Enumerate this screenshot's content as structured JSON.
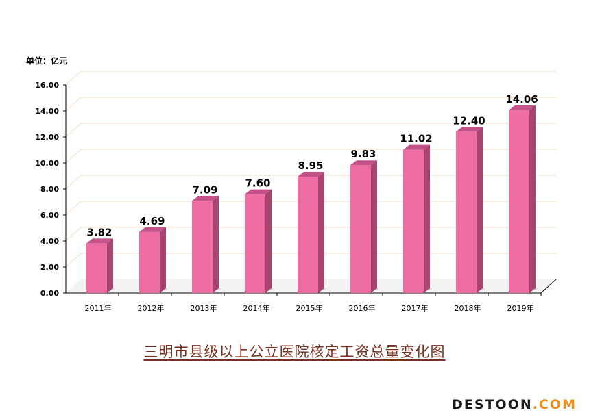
{
  "chart_data": {
    "type": "bar",
    "unit_label": "单位：亿元",
    "categories": [
      "2011年",
      "2012年",
      "2013年",
      "2014年",
      "2015年",
      "2016年",
      "2017年",
      "2018年",
      "2019年"
    ],
    "values": [
      3.82,
      4.69,
      7.09,
      7.6,
      8.95,
      9.83,
      11.02,
      12.4,
      14.06
    ],
    "data_labels": [
      "3.82",
      "4.69",
      "7.09",
      "7.60",
      "8.95",
      "9.83",
      "11.02",
      "12.40",
      "14.06"
    ],
    "yticks": [
      "0.00",
      "2.00",
      "4.00",
      "6.00",
      "8.00",
      "10.00",
      "12.00",
      "14.00",
      "16.00"
    ],
    "ylim": [
      0,
      16
    ],
    "grid": true,
    "colors": {
      "bar_front": "#ee6ea4",
      "bar_side": "#a8446f",
      "bar_top": "#c25288",
      "grid": "#f6ddc8"
    }
  },
  "caption": "三明市县级以上公立医院核定工资总量变化图",
  "watermark": {
    "part1": "DESTOON",
    "part2": ".COM"
  }
}
